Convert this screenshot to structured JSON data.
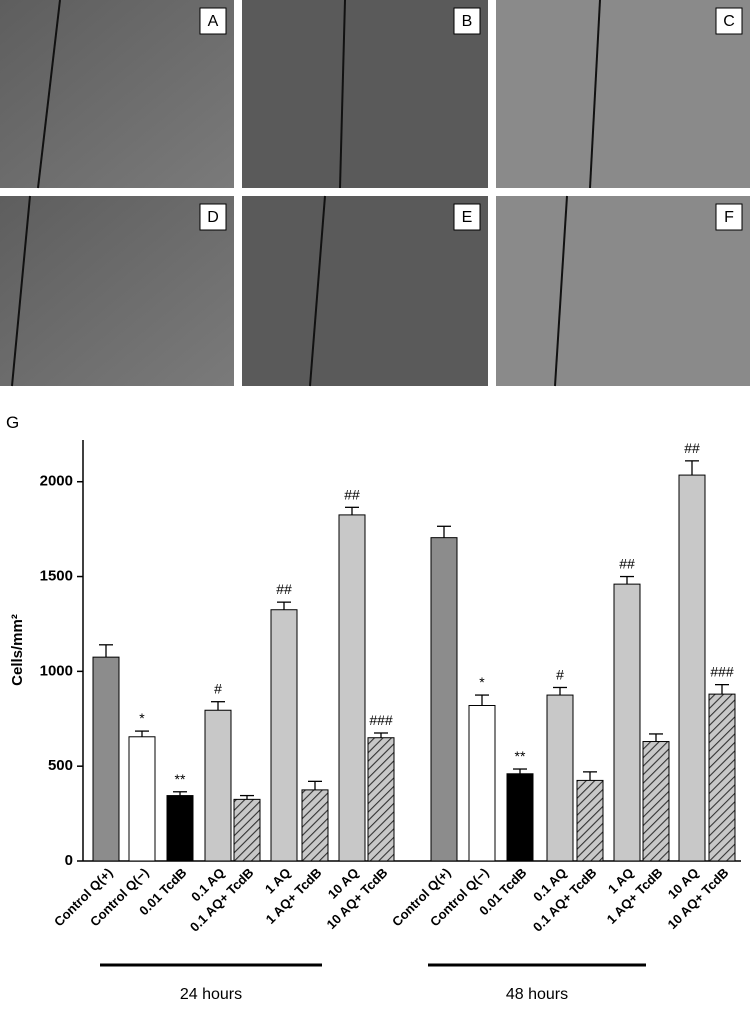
{
  "panels": [
    "A",
    "B",
    "C",
    "D",
    "E",
    "F"
  ],
  "chart_data": {
    "type": "bar",
    "panel_label": "G",
    "ylabel": "Cells/mm²",
    "categories": [
      "Control Q(+)",
      "Control Q(−)",
      "0.01 TcdB",
      "0.1 AQ",
      "0.1 AQ+ TcdB",
      "1 AQ",
      "1 AQ+ TcdB",
      "10 AQ",
      "10 AQ+ TcdB",
      "Control Q(+)",
      "Control Q(−)",
      "0.01 TcdB",
      "0.1 AQ",
      "0.1 AQ+ TcdB",
      "1 AQ",
      "1 AQ+ TcdB",
      "10 AQ",
      "10 AQ+ TcdB"
    ],
    "values": [
      1075,
      655,
      345,
      795,
      325,
      1325,
      375,
      1825,
      650,
      1705,
      820,
      460,
      875,
      425,
      1460,
      630,
      2035,
      880
    ],
    "errors": [
      65,
      30,
      20,
      45,
      20,
      40,
      45,
      40,
      25,
      60,
      55,
      25,
      40,
      45,
      40,
      40,
      75,
      50
    ],
    "annotations": [
      null,
      "*",
      "**",
      "#",
      null,
      "##",
      null,
      "##",
      "###",
      null,
      "*",
      "**",
      "#",
      null,
      "##",
      null,
      "##",
      "###"
    ],
    "colors": [
      "#8c8c8c",
      "#ffffff",
      "#000000",
      "#c8c8c8",
      "#c8c8c8",
      "#c8c8c8",
      "#c8c8c8",
      "#c8c8c8",
      "#c8c8c8",
      "#8c8c8c",
      "#ffffff",
      "#000000",
      "#c8c8c8",
      "#c8c8c8",
      "#c8c8c8",
      "#c8c8c8",
      "#c8c8c8",
      "#c8c8c8"
    ],
    "hatched": [
      false,
      false,
      false,
      false,
      true,
      false,
      true,
      false,
      true,
      false,
      false,
      false,
      false,
      true,
      false,
      true,
      false,
      true
    ],
    "groups": [
      "24 hours",
      "48 hours"
    ],
    "ylim": [
      0,
      2220
    ],
    "yticks": [
      0,
      500,
      1000,
      1500,
      2000
    ]
  }
}
